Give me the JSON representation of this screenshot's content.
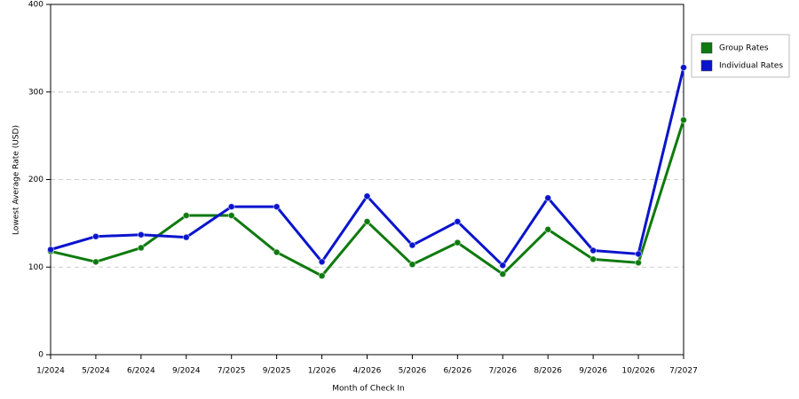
{
  "chart_data": {
    "type": "line",
    "x_label": "Month of Check In",
    "y_label": "Lowest Average Rate (USD)",
    "categories": [
      "1/2024",
      "5/2024",
      "6/2024",
      "9/2024",
      "7/2025",
      "9/2025",
      "1/2026",
      "4/2026",
      "5/2026",
      "6/2026",
      "7/2026",
      "8/2026",
      "9/2026",
      "10/2026",
      "7/2027"
    ],
    "series": [
      {
        "name": "Group Rates",
        "color": "#0e7a0e",
        "values": [
          118,
          106,
          122,
          159,
          159,
          117,
          90,
          152,
          103,
          128,
          92,
          143,
          109,
          105,
          268
        ]
      },
      {
        "name": "Individual Rates",
        "color": "#0a14cc",
        "values": [
          120,
          135,
          137,
          134,
          169,
          169,
          106,
          181,
          125,
          152,
          102,
          179,
          119,
          115,
          328
        ]
      }
    ],
    "ylim": [
      0,
      400
    ],
    "yticks": [
      0,
      100,
      200,
      300,
      400
    ],
    "grid": true
  }
}
